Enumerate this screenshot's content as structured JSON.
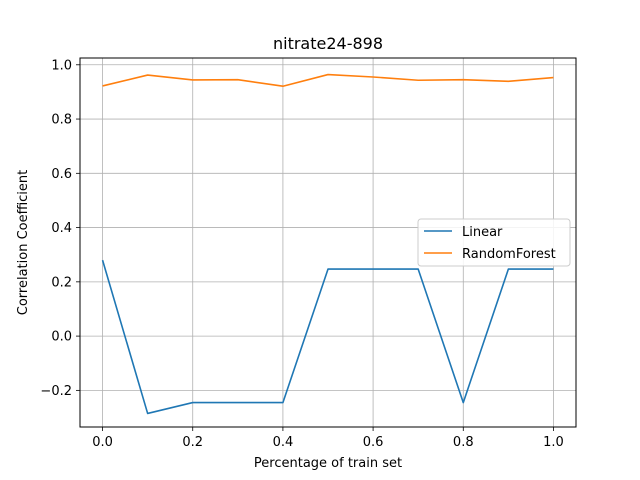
{
  "chart_data": {
    "type": "line",
    "title": "nitrate24-898",
    "xlabel": "Percentage of train set",
    "ylabel": "Correlation Coefficient",
    "xlim": [
      -0.05,
      1.05
    ],
    "ylim": [
      -0.335,
      1.025
    ],
    "xticks": [
      0.0,
      0.2,
      0.4,
      0.6,
      0.8,
      1.0
    ],
    "xtick_labels": [
      "0.0",
      "0.2",
      "0.4",
      "0.6",
      "0.8",
      "1.0"
    ],
    "yticks": [
      -0.2,
      0.0,
      0.2,
      0.4,
      0.6,
      0.8,
      1.0
    ],
    "ytick_labels": [
      "−0.2",
      "0.0",
      "0.2",
      "0.4",
      "0.6",
      "0.8",
      "1.0"
    ],
    "grid": true,
    "legend_position": "center-right",
    "x": [
      0.0,
      0.1,
      0.2,
      0.3,
      0.4,
      0.5,
      0.6,
      0.7,
      0.8,
      0.9,
      1.0
    ],
    "series": [
      {
        "name": "Linear",
        "color": "#1f77b4",
        "values": [
          0.28,
          -0.285,
          -0.245,
          -0.245,
          -0.245,
          0.247,
          0.247,
          0.247,
          -0.245,
          0.247,
          0.247
        ]
      },
      {
        "name": "RandomForest",
        "color": "#ff7f0e",
        "values": [
          0.922,
          0.962,
          0.944,
          0.945,
          0.921,
          0.964,
          0.955,
          0.943,
          0.945,
          0.939,
          0.953
        ]
      }
    ]
  }
}
